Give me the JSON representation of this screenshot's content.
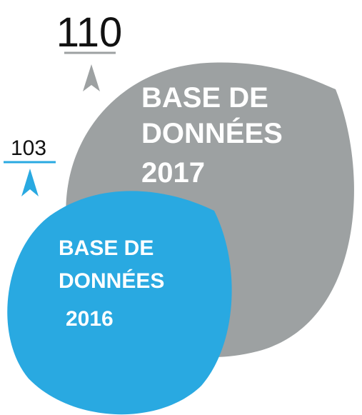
{
  "items": [
    {
      "value": 110,
      "lines": [
        "BASE DE",
        "DONNÉES",
        "2017"
      ]
    },
    {
      "value": 103,
      "lines": [
        "BASE DE",
        "DONNÉES",
        "2016"
      ]
    }
  ]
}
